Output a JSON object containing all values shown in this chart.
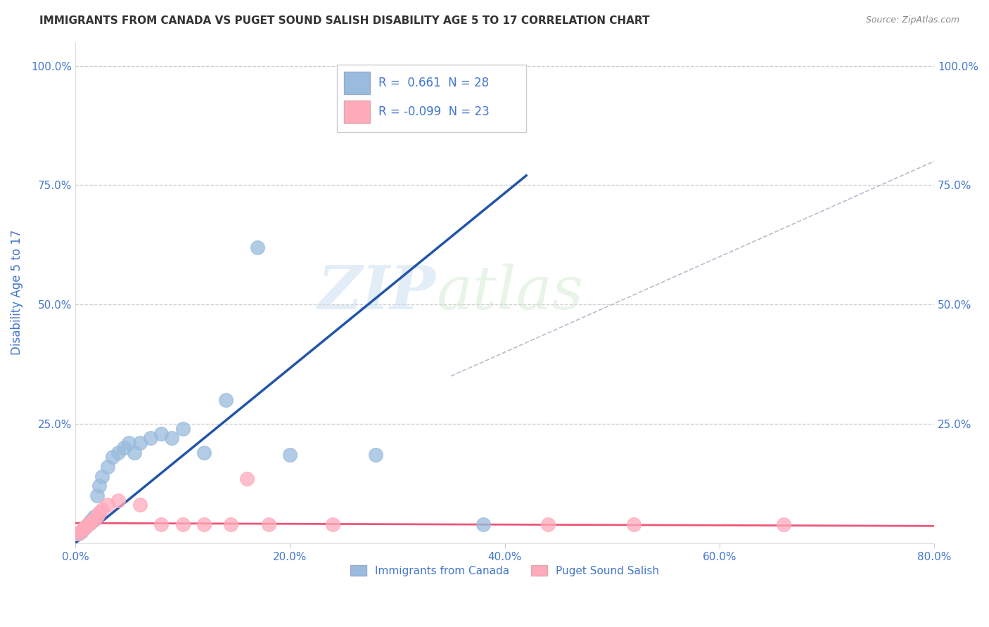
{
  "title": "IMMIGRANTS FROM CANADA VS PUGET SOUND SALISH DISABILITY AGE 5 TO 17 CORRELATION CHART",
  "source": "Source: ZipAtlas.com",
  "ylabel": "Disability Age 5 to 17",
  "xlim": [
    0.0,
    0.8
  ],
  "ylim": [
    0.0,
    1.05
  ],
  "xtick_labels": [
    "0.0%",
    "",
    "20.0%",
    "",
    "40.0%",
    "",
    "60.0%",
    "",
    "80.0%"
  ],
  "xtick_vals": [
    0.0,
    0.1,
    0.2,
    0.3,
    0.4,
    0.5,
    0.6,
    0.7,
    0.8
  ],
  "xtick_display": [
    "0.0%",
    "20.0%",
    "40.0%",
    "60.0%",
    "80.0%"
  ],
  "xtick_display_vals": [
    0.0,
    0.2,
    0.4,
    0.6,
    0.8
  ],
  "ytick_labels": [
    "25.0%",
    "50.0%",
    "75.0%",
    "100.0%"
  ],
  "ytick_vals": [
    0.25,
    0.5,
    0.75,
    1.0
  ],
  "grid_color": "#cccccc",
  "background_color": "#ffffff",
  "watermark_zip": "ZIP",
  "watermark_atlas": "atlas",
  "blue_color": "#99bbdd",
  "pink_color": "#ffaabb",
  "blue_line_color": "#2255aa",
  "pink_line_color": "#ee5577",
  "diag_line_color": "#bbbbcc",
  "title_color": "#333333",
  "source_color": "#888888",
  "axis_label_color": "#4477cc",
  "legend_text_color": "#333333",
  "legend_r_color": "#4477cc",
  "blue_scatter_x": [
    0.003,
    0.006,
    0.008,
    0.01,
    0.012,
    0.014,
    0.016,
    0.018,
    0.02,
    0.022,
    0.025,
    0.03,
    0.035,
    0.04,
    0.045,
    0.05,
    0.055,
    0.06,
    0.07,
    0.08,
    0.09,
    0.1,
    0.12,
    0.14,
    0.17,
    0.2,
    0.28,
    0.38
  ],
  "blue_scatter_y": [
    0.02,
    0.025,
    0.03,
    0.035,
    0.04,
    0.045,
    0.05,
    0.055,
    0.1,
    0.12,
    0.14,
    0.16,
    0.18,
    0.19,
    0.2,
    0.21,
    0.19,
    0.21,
    0.22,
    0.23,
    0.22,
    0.24,
    0.19,
    0.3,
    0.62,
    0.185,
    0.185,
    0.04
  ],
  "pink_scatter_x": [
    0.002,
    0.005,
    0.008,
    0.01,
    0.012,
    0.015,
    0.018,
    0.02,
    0.022,
    0.025,
    0.03,
    0.04,
    0.06,
    0.08,
    0.1,
    0.12,
    0.16,
    0.18,
    0.24,
    0.44,
    0.52,
    0.66,
    0.145
  ],
  "pink_scatter_y": [
    0.02,
    0.025,
    0.03,
    0.035,
    0.04,
    0.045,
    0.05,
    0.055,
    0.065,
    0.07,
    0.08,
    0.09,
    0.08,
    0.04,
    0.04,
    0.04,
    0.135,
    0.04,
    0.04,
    0.04,
    0.04,
    0.04,
    0.04
  ],
  "blue_line_x": [
    0.0,
    0.42
  ],
  "blue_line_y": [
    0.0,
    0.77
  ],
  "pink_line_x": [
    0.0,
    0.8
  ],
  "pink_line_y": [
    0.042,
    0.036
  ],
  "diag_line_x": [
    0.35,
    0.8
  ],
  "diag_line_y": [
    0.35,
    0.8
  ]
}
